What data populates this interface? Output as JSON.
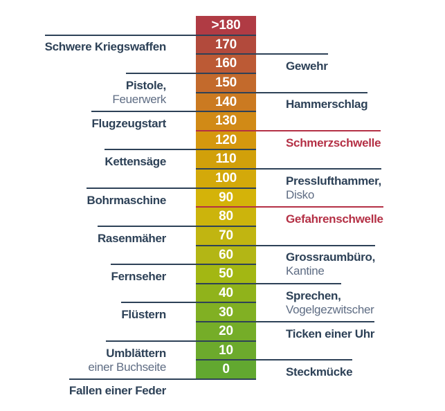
{
  "colors": {
    "navy": "#2d4157",
    "secondary": "#5e6c83",
    "red": "#b43045",
    "number_text": "#ffffff",
    "background": "#ffffff"
  },
  "chart_data": {
    "type": "scale-bar",
    "orientation": "vertical",
    "value_range_top": ">180",
    "value_range_bottom": "0",
    "levels": [
      {
        "value": ">180",
        "color": "#b03b44",
        "side": null,
        "label": "",
        "sublabel": "",
        "threshold": false
      },
      {
        "value": "170",
        "color": "#b24a3c",
        "side": "left",
        "label": "Schwere Kriegswaffen",
        "sublabel": "",
        "threshold": false
      },
      {
        "value": "160",
        "color": "#bc5a35",
        "side": "right",
        "label": "Gewehr",
        "sublabel": "",
        "threshold": false
      },
      {
        "value": "150",
        "color": "#c36a2c",
        "side": "left",
        "label": "Pistole,",
        "sublabel": "Feuerwerk",
        "threshold": false
      },
      {
        "value": "140",
        "color": "#cb7a21",
        "side": "right",
        "label": "Hammerschlag",
        "sublabel": "",
        "threshold": false
      },
      {
        "value": "130",
        "color": "#d18a16",
        "side": "left",
        "label": "Flugzeugstart",
        "sublabel": "",
        "threshold": false
      },
      {
        "value": "120",
        "color": "#d5980e",
        "side": "right",
        "label": "Schmerzschwelle",
        "sublabel": "",
        "threshold": true
      },
      {
        "value": "110",
        "color": "#d1a00a",
        "side": "left",
        "label": "Kettensäge",
        "sublabel": "",
        "threshold": false
      },
      {
        "value": "100",
        "color": "#d3a90a",
        "side": "right",
        "label": "Presslufthammer,",
        "sublabel": "Disko",
        "threshold": false
      },
      {
        "value": "90",
        "color": "#d4b309",
        "side": "left",
        "label": "Bohrmaschine",
        "sublabel": "",
        "threshold": false
      },
      {
        "value": "80",
        "color": "#ccb40c",
        "side": "right",
        "label": "Gefahrenschwelle",
        "sublabel": "",
        "threshold": true
      },
      {
        "value": "70",
        "color": "#c1b511",
        "side": "left",
        "label": "Rasenmäher",
        "sublabel": "",
        "threshold": false
      },
      {
        "value": "60",
        "color": "#b3b615",
        "side": "right",
        "label": "Grossraumbüro,",
        "sublabel": "Kantine",
        "threshold": false
      },
      {
        "value": "50",
        "color": "#a3b713",
        "side": "left",
        "label": "Fernseher",
        "sublabel": "",
        "threshold": false
      },
      {
        "value": "40",
        "color": "#90b31b",
        "side": "right",
        "label": "Sprechen,",
        "sublabel": "Vogelgezwitscher",
        "threshold": false
      },
      {
        "value": "30",
        "color": "#81b023",
        "side": "left",
        "label": "Flüstern",
        "sublabel": "",
        "threshold": false
      },
      {
        "value": "20",
        "color": "#75ad28",
        "side": "right",
        "label": "Ticken einer Uhr",
        "sublabel": "",
        "threshold": false
      },
      {
        "value": "10",
        "color": "#6caa2c",
        "side": "left",
        "label": "Umblättern",
        "sublabel": "einer Buchseite",
        "threshold": false
      },
      {
        "value": "0",
        "color": "#62a830",
        "side": "right",
        "label": "Steckmücke",
        "sublabel": "",
        "threshold": false
      }
    ],
    "bottom_label": {
      "label": "Fallen einer Feder",
      "side": "left"
    }
  }
}
